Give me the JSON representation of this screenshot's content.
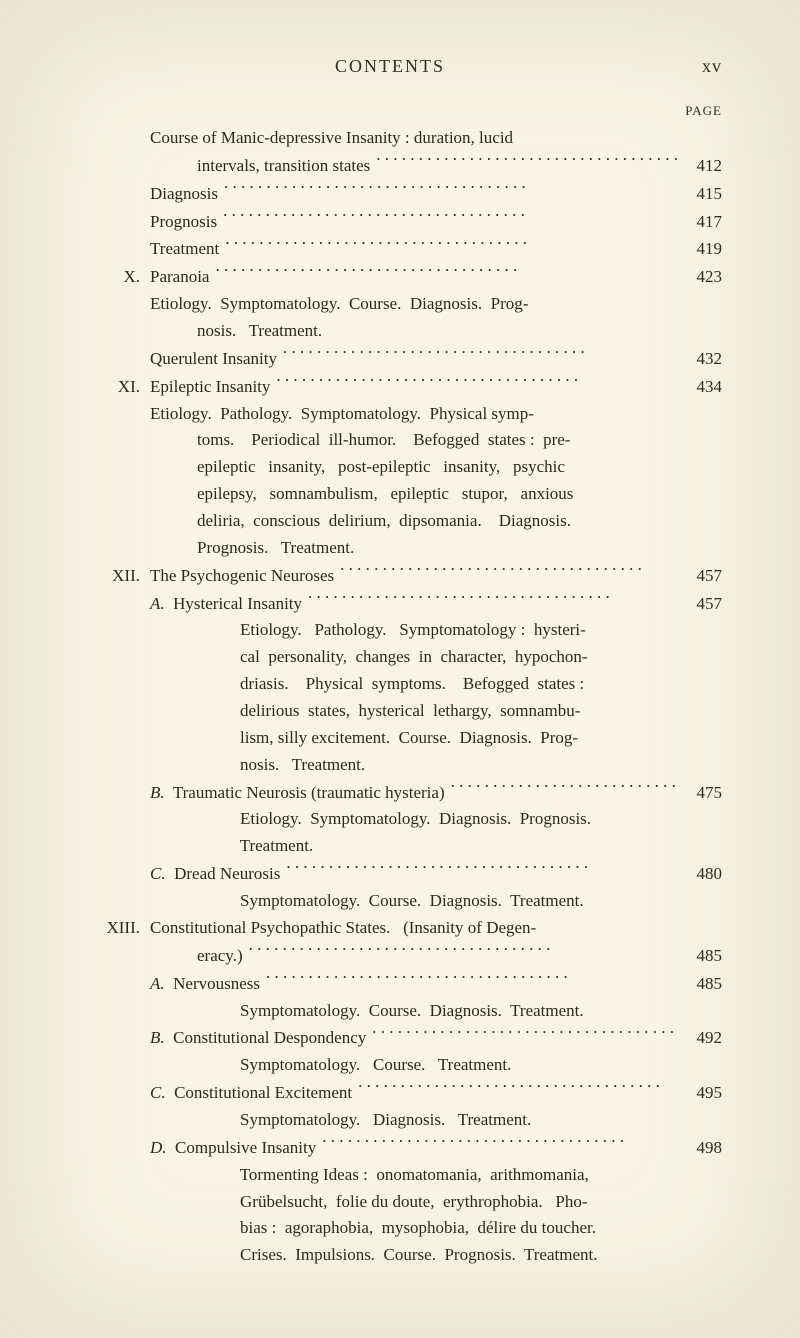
{
  "colors": {
    "background": "#f8f5e6",
    "text": "#2a2a1a"
  },
  "typography": {
    "family": "Times New Roman",
    "body_size_pt": 12,
    "header_size_pt": 13,
    "header_letter_spacing": "2px"
  },
  "header": {
    "title": "CONTENTS",
    "folio": "xv",
    "page_label": "PAGE"
  },
  "entries": [
    {
      "roman": "",
      "text": "Course of Manic-depressive Insanity : duration, lucid",
      "indent": 1,
      "page": "",
      "dots": false
    },
    {
      "roman": "",
      "text": "intervals, transition states",
      "indent": 2,
      "page": "412",
      "dots": true
    },
    {
      "roman": "",
      "text": "Diagnosis",
      "indent": 1,
      "page": "415",
      "dots": true
    },
    {
      "roman": "",
      "text": "Prognosis",
      "indent": 1,
      "page": "417",
      "dots": true
    },
    {
      "roman": "",
      "text": "Treatment",
      "indent": 1,
      "page": "419",
      "dots": true
    },
    {
      "roman": "X.",
      "text": "Paranoia",
      "indent": 0,
      "page": "423",
      "dots": true
    },
    {
      "roman": "",
      "text": "Etiology.  Symptomatology.  Course.  Diagnosis.  Prog-",
      "indent": 1,
      "page": "",
      "dots": false
    },
    {
      "roman": "",
      "text": "nosis.   Treatment.",
      "indent": 2,
      "page": "",
      "dots": false
    },
    {
      "roman": "",
      "text": "Querulent Insanity",
      "indent": 1,
      "page": "432",
      "dots": true
    },
    {
      "roman": "XI.",
      "text": "Epileptic Insanity",
      "indent": 0,
      "page": "434",
      "dots": true
    },
    {
      "roman": "",
      "text": "Etiology.  Pathology.  Symptomatology.  Physical symp-",
      "indent": 1,
      "page": "",
      "dots": false
    },
    {
      "roman": "",
      "text": "toms.    Periodical  ill-humor.    Befogged  states :  pre-",
      "indent": 2,
      "page": "",
      "dots": false
    },
    {
      "roman": "",
      "text": "epileptic   insanity,   post-epileptic   insanity,   psychic",
      "indent": 2,
      "page": "",
      "dots": false
    },
    {
      "roman": "",
      "text": "epilepsy,   somnambulism,   epileptic   stupor,   anxious",
      "indent": 2,
      "page": "",
      "dots": false
    },
    {
      "roman": "",
      "text": "deliria,  conscious  delirium,  dipsomania.    Diagnosis.",
      "indent": 2,
      "page": "",
      "dots": false
    },
    {
      "roman": "",
      "text": "Prognosis.   Treatment.",
      "indent": 2,
      "page": "",
      "dots": false
    },
    {
      "roman": "XII.",
      "text": "The Psychogenic Neuroses",
      "indent": 0,
      "page": "457",
      "dots": true
    },
    {
      "roman": "",
      "text": "A.  Hysterical Insanity",
      "indent": 1,
      "page": "457",
      "dots": true,
      "italic_prefix": "A."
    },
    {
      "roman": "",
      "text": "Etiology.   Pathology.   Symptomatology :  hysteri-",
      "indent": 3,
      "page": "",
      "dots": false
    },
    {
      "roman": "",
      "text": "cal  personality,  changes  in  character,  hypochon-",
      "indent": 3,
      "page": "",
      "dots": false
    },
    {
      "roman": "",
      "text": "driasis.    Physical  symptoms.    Befogged  states :",
      "indent": 3,
      "page": "",
      "dots": false
    },
    {
      "roman": "",
      "text": "delirious  states,  hysterical  lethargy,  somnambu-",
      "indent": 3,
      "page": "",
      "dots": false
    },
    {
      "roman": "",
      "text": "lism, silly excitement.  Course.  Diagnosis.  Prog-",
      "indent": 3,
      "page": "",
      "dots": false
    },
    {
      "roman": "",
      "text": "nosis.   Treatment.",
      "indent": 3,
      "page": "",
      "dots": false
    },
    {
      "roman": "",
      "text": "B.  Traumatic Neurosis (traumatic hysteria)",
      "indent": 1,
      "page": "475",
      "dots": true,
      "italic_prefix": "B."
    },
    {
      "roman": "",
      "text": "Etiology.  Symptomatology.  Diagnosis.  Prognosis.",
      "indent": 3,
      "page": "",
      "dots": false
    },
    {
      "roman": "",
      "text": "Treatment.",
      "indent": 3,
      "page": "",
      "dots": false
    },
    {
      "roman": "",
      "text": "C.  Dread Neurosis",
      "indent": 1,
      "page": "480",
      "dots": true,
      "italic_prefix": "C."
    },
    {
      "roman": "",
      "text": "Symptomatology.  Course.  Diagnosis.  Treatment.",
      "indent": 3,
      "page": "",
      "dots": false
    },
    {
      "roman": "XIII.",
      "text": "Constitutional Psychopathic States.   (Insanity of Degen-",
      "indent": 0,
      "page": "",
      "dots": false
    },
    {
      "roman": "",
      "text": "eracy.)",
      "indent": 2,
      "page": "485",
      "dots": true
    },
    {
      "roman": "",
      "text": "A.  Nervousness",
      "indent": 1,
      "page": "485",
      "dots": true,
      "italic_prefix": "A."
    },
    {
      "roman": "",
      "text": "Symptomatology.  Course.  Diagnosis.  Treatment.",
      "indent": 3,
      "page": "",
      "dots": false
    },
    {
      "roman": "",
      "text": "B.  Constitutional Despondency",
      "indent": 1,
      "page": "492",
      "dots": true,
      "italic_prefix": "B."
    },
    {
      "roman": "",
      "text": "Symptomatology.   Course.   Treatment.",
      "indent": 3,
      "page": "",
      "dots": false
    },
    {
      "roman": "",
      "text": "C.  Constitutional Excitement",
      "indent": 1,
      "page": "495",
      "dots": true,
      "italic_prefix": "C."
    },
    {
      "roman": "",
      "text": "Symptomatology.   Diagnosis.   Treatment.",
      "indent": 3,
      "page": "",
      "dots": false
    },
    {
      "roman": "",
      "text": "D.  Compulsive Insanity",
      "indent": 1,
      "page": "498",
      "dots": true,
      "italic_prefix": "D."
    },
    {
      "roman": "",
      "text": "Tormenting Ideas :  onomatomania,  arithmomania,",
      "indent": 3,
      "page": "",
      "dots": false
    },
    {
      "roman": "",
      "text": "Grübelsucht,  folie du doute,  erythrophobia.   Pho-",
      "indent": 3,
      "page": "",
      "dots": false
    },
    {
      "roman": "",
      "text": "bias :  agoraphobia,  mysophobia,  délire du toucher.",
      "indent": 3,
      "page": "",
      "dots": false
    },
    {
      "roman": "",
      "text": "Crises.  Impulsions.  Course.  Prognosis.  Treatment.",
      "indent": 3,
      "page": "",
      "dots": false
    }
  ]
}
